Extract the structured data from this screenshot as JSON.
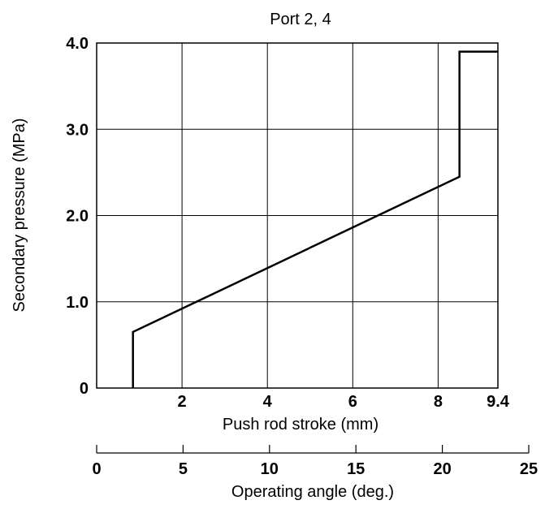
{
  "chart_data": {
    "type": "line",
    "title": "Port 2, 4",
    "xlabel": "Push rod stroke (mm)",
    "ylabel": "Secondary pressure (MPa)",
    "xlim": [
      0,
      9.4
    ],
    "ylim": [
      0,
      4.0
    ],
    "x_ticks": [
      "2",
      "4",
      "6",
      "8",
      "9.4"
    ],
    "x_tick_values": [
      2,
      4,
      6,
      8,
      9.4
    ],
    "y_ticks": [
      "0",
      "1.0",
      "2.0",
      "3.0",
      "4.0"
    ],
    "y_tick_values": [
      0,
      1.0,
      2.0,
      3.0,
      4.0
    ],
    "grid": true,
    "series": [
      {
        "x": [
          0.85,
          0.85,
          8.5,
          8.5,
          9.4
        ],
        "y": [
          0,
          0.65,
          2.45,
          3.9,
          3.9
        ]
      }
    ],
    "secondary_x_axis": {
      "label": "Operating angle (deg.)",
      "lim": [
        0,
        25
      ],
      "ticks": [
        "0",
        "5",
        "10",
        "15",
        "20",
        "25"
      ],
      "tick_values": [
        0,
        5,
        10,
        15,
        20,
        25
      ]
    }
  }
}
